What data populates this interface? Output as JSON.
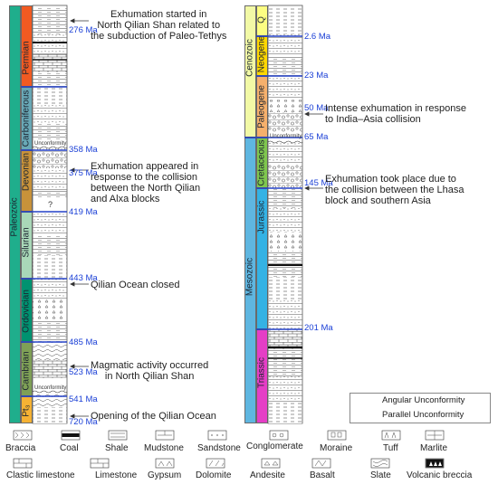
{
  "left_column": {
    "era": "Paleozoic",
    "periods": [
      "Permian",
      "Carboniferous",
      "Devonian",
      "Silurian",
      "Ordovician",
      "Cambrian",
      "Pt₃"
    ],
    "ages": [
      "276 Ma",
      "358 Ma",
      "375 Ma",
      "419 Ma",
      "443 Ma",
      "485 Ma",
      "523 Ma",
      "541 Ma",
      "720 Ma"
    ],
    "unconformity_labels": [
      "Unconformity",
      "Unconformity"
    ],
    "question_mark": "?"
  },
  "right_column": {
    "eras": [
      "Cenozoic",
      "Mesozoic"
    ],
    "periods": [
      "Q",
      "Neogene",
      "Paleogene",
      "Cretaceous",
      "Jurassic",
      "Triassic"
    ],
    "ages": [
      "2.6 Ma",
      "23 Ma",
      "50 Ma",
      "65 Ma",
      "145 Ma",
      "201 Ma"
    ],
    "unconformity_label": "Unconformity"
  },
  "annotations": [
    "Exhumation started in\nNorth Qilian Shan related to\nthe subduction of Paleo-Tethys",
    "Exhumation appeared in\nresponse to the collision\nbetween the North Qilian\nand Alxa blocks",
    "Qilian Ocean closed",
    "Magmatic activity occurred\nin North Qilian Shan",
    "Opening of  the Qilian Ocean",
    "Intense exhumation in response\nto  India–Asia collision",
    "Exhumation took place due to\nthe collision between the Lhasa\nblock and southern Asia"
  ],
  "unconformity_legend": {
    "angular_label": "Angular  Unconformity",
    "parallel_label": "Parallel  Unconformity"
  },
  "lithology_legend": {
    "row1": [
      "Braccia",
      "Coal",
      "Shale",
      "Mudstone",
      "Sandstone",
      "Conglomerate",
      "Moraine",
      "Tuff",
      "Marlite"
    ],
    "row2": [
      "Clastic limestone",
      "Limestone",
      "Gypsum",
      "Dolomite",
      "Andesite",
      "Basalt",
      "Slate",
      "Volcanic breccia"
    ]
  },
  "colors": {
    "paleozoic": "#1fae8c",
    "permian": "#f15a22",
    "carboniferous": "#69a8b6",
    "devonian": "#c8923a",
    "silurian": "#a9d8b8",
    "ordovician": "#009270",
    "cambrian": "#7fa056",
    "pt3": "#f6b234",
    "cenozoic": "#f2f9a6",
    "q": "#fcfd82",
    "neogene": "#ffd700",
    "paleogene": "#f6b06c",
    "cretaceous": "#7fc64e",
    "mesozoic": "#5fb6e0",
    "jurassic": "#34b2e4",
    "triassic": "#e53ec6",
    "age_text": "#1a3fd6",
    "boundary_blue": "#2340c7"
  }
}
